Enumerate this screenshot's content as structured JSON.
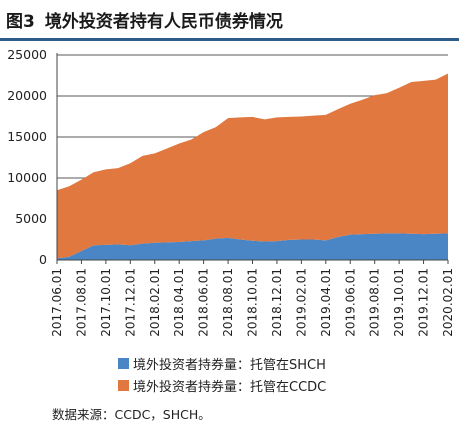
{
  "figure": {
    "number": "图3",
    "title": "境外投资者持有人民币债券情况",
    "source": "数据来源：CCDC，SHCH。"
  },
  "colors": {
    "shch": "#4a86c5",
    "ccdc": "#e07840",
    "title_rule": "#2e5d8c"
  },
  "chart_data": {
    "type": "area",
    "stacked": true,
    "title": "境外投资者持有人民币债券情况",
    "xlabel": "",
    "ylabel": "",
    "ylim": [
      0,
      25000
    ],
    "yticks": [
      0,
      5000,
      10000,
      15000,
      20000,
      25000
    ],
    "grid": "horizontal",
    "legend": "bottom",
    "x": [
      "2017.06.01",
      "2017.07.01",
      "2017.08.01",
      "2017.09.01",
      "2017.10.01",
      "2017.11.01",
      "2017.12.01",
      "2018.01.01",
      "2018.02.01",
      "2018.03.01",
      "2018.04.01",
      "2018.05.01",
      "2018.06.01",
      "2018.07.01",
      "2018.08.01",
      "2018.09.01",
      "2018.10.01",
      "2018.11.01",
      "2018.12.01",
      "2019.01.01",
      "2019.02.01",
      "2019.03.01",
      "2019.04.01",
      "2019.05.01",
      "2019.06.01",
      "2019.07.01",
      "2019.08.01",
      "2019.09.01",
      "2019.10.01",
      "2019.11.01",
      "2019.12.01",
      "2020.01.01",
      "2020.02.01"
    ],
    "xtick_labels": [
      "2017.06.01",
      "2017.08.01",
      "2017.10.01",
      "2017.12.01",
      "2018.02.01",
      "2018.04.01",
      "2018.06.01",
      "2018.08.01",
      "2018.10.01",
      "2018.12.01",
      "2019.02.01",
      "2019.04.01",
      "2019.06.01",
      "2019.08.01",
      "2019.10.01",
      "2019.12.01",
      "2020.02.01"
    ],
    "series": [
      {
        "name": "境外投资者持券量：托管在SHCH",
        "color": "#4a86c5",
        "values": [
          200,
          400,
          1100,
          1800,
          1850,
          1900,
          1800,
          2000,
          2100,
          2150,
          2200,
          2300,
          2400,
          2600,
          2700,
          2500,
          2350,
          2250,
          2300,
          2450,
          2500,
          2500,
          2400,
          2800,
          3100,
          3150,
          3200,
          3250,
          3250,
          3200,
          3150,
          3200,
          3250
        ]
      },
      {
        "name": "境外投资者持券量：托管在CCDC",
        "color": "#e07840",
        "values": [
          8300,
          8600,
          8700,
          8900,
          9200,
          9300,
          10000,
          10700,
          10900,
          11450,
          12000,
          12400,
          13200,
          13600,
          14600,
          14900,
          15100,
          14900,
          15100,
          15000,
          15000,
          15100,
          15300,
          15600,
          15950,
          16400,
          16900,
          17100,
          17750,
          18500,
          18700,
          18800,
          19500
        ]
      }
    ]
  }
}
